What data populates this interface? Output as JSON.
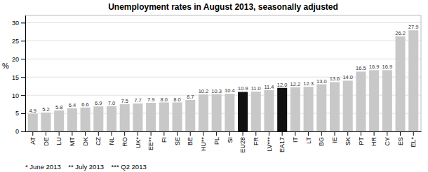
{
  "chart_data": {
    "type": "bar",
    "title": "Unemployment rates in August 2013, seasonally adjusted",
    "y_label": "%",
    "categories": [
      "AT",
      "DE",
      "LU",
      "MT",
      "DK",
      "CZ",
      "NL",
      "RO",
      "UK*",
      "EE**",
      "FI",
      "SE",
      "BE",
      "HU**",
      "PL",
      "SI",
      "EU28",
      "FR",
      "LV***",
      "EA17",
      "IT",
      "LT",
      "BG",
      "IE",
      "SK",
      "PT",
      "HR",
      "CY",
      "ES",
      "EL*"
    ],
    "values": [
      4.9,
      5.2,
      5.8,
      6.4,
      6.6,
      6.9,
      7.0,
      7.5,
      7.7,
      7.9,
      8.0,
      8.0,
      8.7,
      10.2,
      10.3,
      10.4,
      10.9,
      11.0,
      11.4,
      12.0,
      12.2,
      12.3,
      13.0,
      13.6,
      14.0,
      16.5,
      16.9,
      16.9,
      26.2,
      27.9
    ],
    "value_labels": [
      "4.9",
      "5.2",
      "5.8",
      "6.4",
      "6.6",
      "6.9",
      "7.0",
      "7.5",
      "7.7",
      "7.9",
      "8.0",
      "8.0",
      "8.7",
      "10.2",
      "10.3",
      "10.4",
      "10.9",
      "11.0",
      "11.4",
      "12.0",
      "12.2",
      "12.3",
      "13.0",
      "13.6",
      "14.0",
      "16.5",
      "16.9",
      "16.9",
      "26.2",
      "27.9"
    ],
    "colors": [
      "#c8c8c8",
      "#c8c8c8",
      "#c8c8c8",
      "#c8c8c8",
      "#c8c8c8",
      "#c8c8c8",
      "#c8c8c8",
      "#c8c8c8",
      "#c8c8c8",
      "#c8c8c8",
      "#c8c8c8",
      "#c8c8c8",
      "#c8c8c8",
      "#c8c8c8",
      "#c8c8c8",
      "#c8c8c8",
      "#111111",
      "#c8c8c8",
      "#c8c8c8",
      "#111111",
      "#c8c8c8",
      "#c8c8c8",
      "#c8c8c8",
      "#c8c8c8",
      "#c8c8c8",
      "#c8c8c8",
      "#c8c8c8",
      "#c8c8c8",
      "#c8c8c8",
      "#c8c8c8"
    ],
    "ylim": [
      0,
      32
    ],
    "yticks": [
      0,
      5,
      10,
      15,
      20,
      25,
      30
    ],
    "grid": true,
    "data_labels": true,
    "annotations": [
      "* June 2013    ** July 2013    *** Q2 2013"
    ]
  }
}
